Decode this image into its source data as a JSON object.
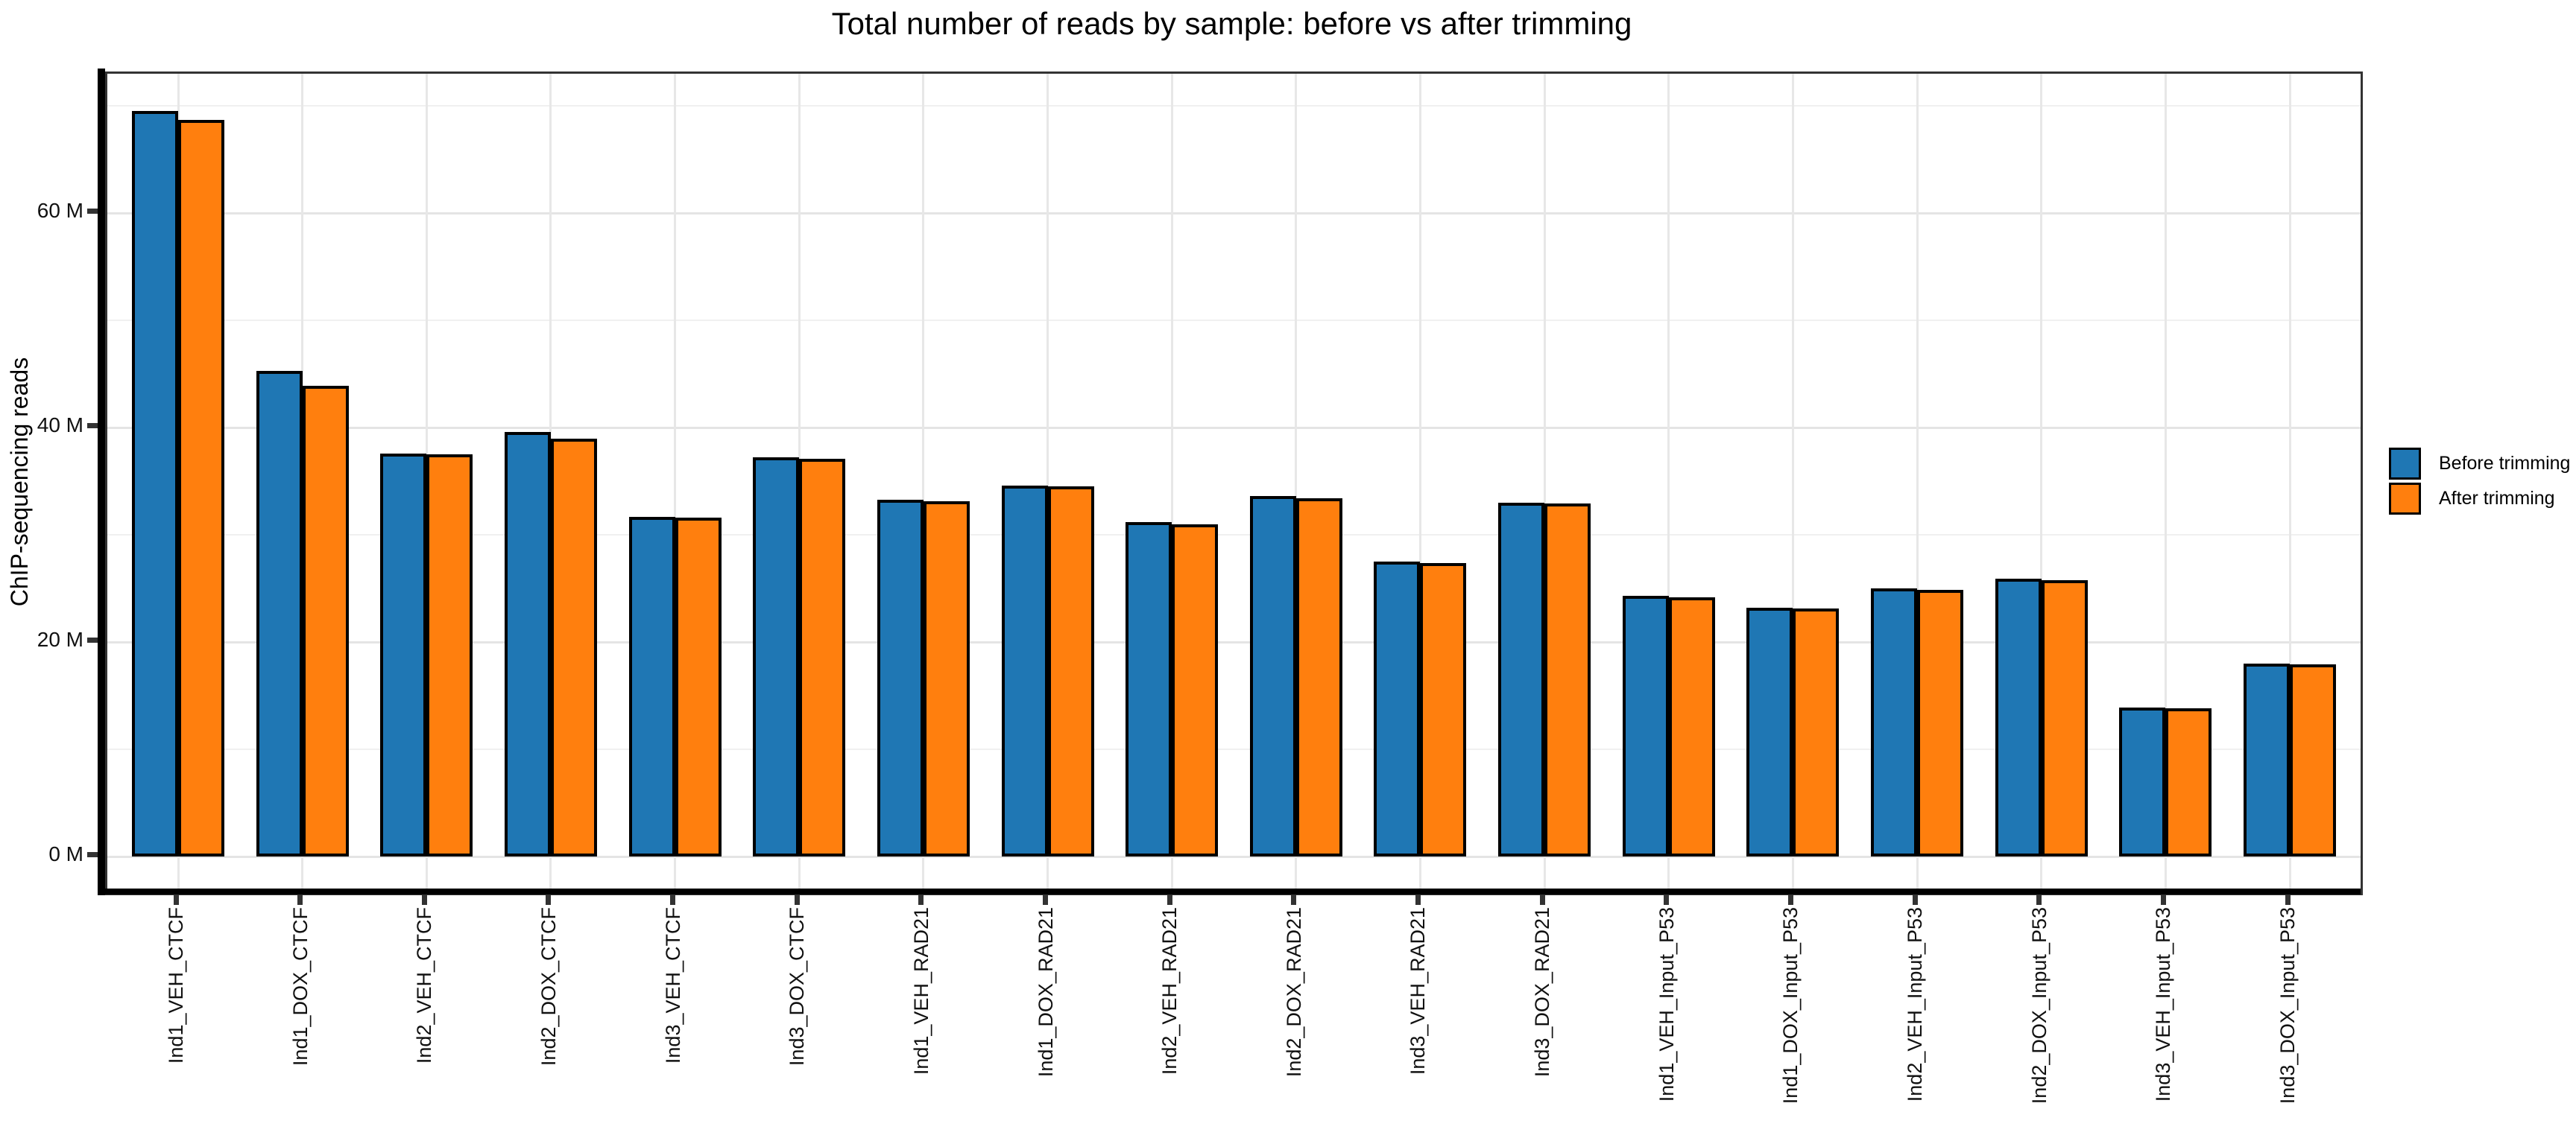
{
  "title": "Total number of reads by sample: before vs after trimming",
  "y_axis": {
    "label": "ChIP-sequencing reads",
    "tick_labels": [
      "0 M",
      "20 M",
      "40 M",
      "60 M"
    ]
  },
  "legend": {
    "items": [
      {
        "label": "Before trimming",
        "color": "#1f77b4"
      },
      {
        "label": "After trimming",
        "color": "#ff7f0e"
      }
    ]
  },
  "colors": {
    "before": "#1f77b4",
    "after": "#ff7f0e",
    "bar_edge": "#000000",
    "grid_major": "#e4e4e4",
    "grid_minor": "#f0f0f0",
    "panel_border": "#333333",
    "axis_spine": "#000000"
  },
  "chart_data": {
    "type": "bar",
    "title": "Total number of reads by sample: before vs after trimming",
    "xlabel": "",
    "ylabel": "ChIP-sequencing reads",
    "categories": [
      "Ind1_VEH_CTCF",
      "Ind1_DOX_CTCF",
      "Ind2_VEH_CTCF",
      "Ind2_DOX_CTCF",
      "Ind3_VEH_CTCF",
      "Ind3_DOX_CTCF",
      "Ind1_VEH_RAD21",
      "Ind1_DOX_RAD21",
      "Ind2_VEH_RAD21",
      "Ind2_DOX_RAD21",
      "Ind3_VEH_RAD21",
      "Ind3_DOX_RAD21",
      "Ind1_VEH_Input_P53",
      "Ind1_DOX_Input_P53",
      "Ind2_VEH_Input_P53",
      "Ind2_DOX_Input_P53",
      "Ind3_VEH_Input_P53",
      "Ind3_DOX_Input_P53"
    ],
    "series": [
      {
        "name": "Before trimming",
        "color": "#1f77b4",
        "values": [
          69.5,
          45.3,
          37.6,
          39.6,
          31.7,
          37.2,
          33.3,
          34.6,
          31.2,
          33.6,
          27.5,
          33.0,
          24.3,
          23.2,
          25.0,
          25.9,
          13.9,
          18.0
        ]
      },
      {
        "name": "After trimming",
        "color": "#ff7f0e",
        "values": [
          68.7,
          43.9,
          37.5,
          39.0,
          31.6,
          37.1,
          33.1,
          34.5,
          31.0,
          33.4,
          27.4,
          32.9,
          24.2,
          23.1,
          24.9,
          25.8,
          13.8,
          17.9
        ]
      }
    ],
    "units": "millions of reads",
    "yticks_major": [
      0,
      20,
      40,
      60
    ],
    "ytick_labels": [
      "0 M",
      "20 M",
      "40 M",
      "60 M"
    ],
    "yticks_minor": [
      10,
      30,
      50,
      70
    ],
    "ylim": [
      -3.4,
      73.0
    ],
    "grid": {
      "horizontal": "major+minor",
      "vertical": "category-centers"
    },
    "legend_position": "right-center"
  }
}
